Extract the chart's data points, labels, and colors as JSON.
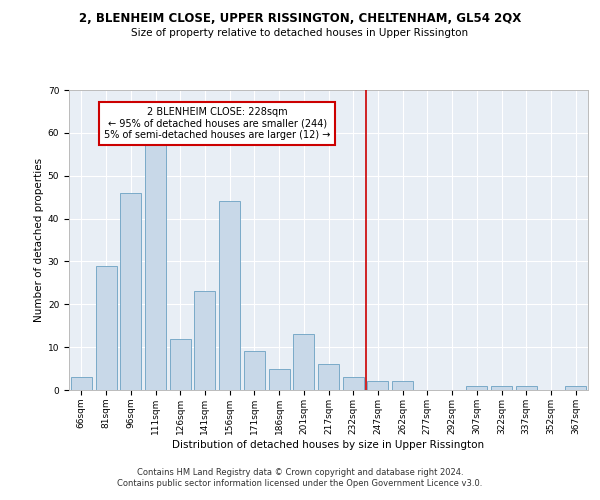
{
  "title": "2, BLENHEIM CLOSE, UPPER RISSINGTON, CHELTENHAM, GL54 2QX",
  "subtitle": "Size of property relative to detached houses in Upper Rissington",
  "xlabel": "Distribution of detached houses by size in Upper Rissington",
  "ylabel": "Number of detached properties",
  "categories": [
    "66sqm",
    "81sqm",
    "96sqm",
    "111sqm",
    "126sqm",
    "141sqm",
    "156sqm",
    "171sqm",
    "186sqm",
    "201sqm",
    "217sqm",
    "232sqm",
    "247sqm",
    "262sqm",
    "277sqm",
    "292sqm",
    "307sqm",
    "322sqm",
    "337sqm",
    "352sqm",
    "367sqm"
  ],
  "values": [
    3,
    29,
    46,
    58,
    12,
    23,
    44,
    9,
    5,
    13,
    6,
    3,
    2,
    2,
    0,
    0,
    1,
    1,
    1,
    0,
    1
  ],
  "bar_color": "#c8d8e8",
  "bar_edge_color": "#7aaac8",
  "vline_x_index": 11.5,
  "vline_color": "#cc0000",
  "annotation_text": "2 BLENHEIM CLOSE: 228sqm\n← 95% of detached houses are smaller (244)\n5% of semi-detached houses are larger (12) →",
  "annotation_box_color": "#ffffff",
  "annotation_box_edge_color": "#cc0000",
  "ylim": [
    0,
    70
  ],
  "yticks": [
    0,
    10,
    20,
    30,
    40,
    50,
    60,
    70
  ],
  "background_color": "#e8eef5",
  "grid_color": "#ffffff",
  "footer_line1": "Contains HM Land Registry data © Crown copyright and database right 2024.",
  "footer_line2": "Contains public sector information licensed under the Open Government Licence v3.0.",
  "title_fontsize": 8.5,
  "subtitle_fontsize": 7.5,
  "xlabel_fontsize": 7.5,
  "ylabel_fontsize": 7.5,
  "tick_fontsize": 6.5,
  "annotation_fontsize": 7,
  "footer_fontsize": 6
}
